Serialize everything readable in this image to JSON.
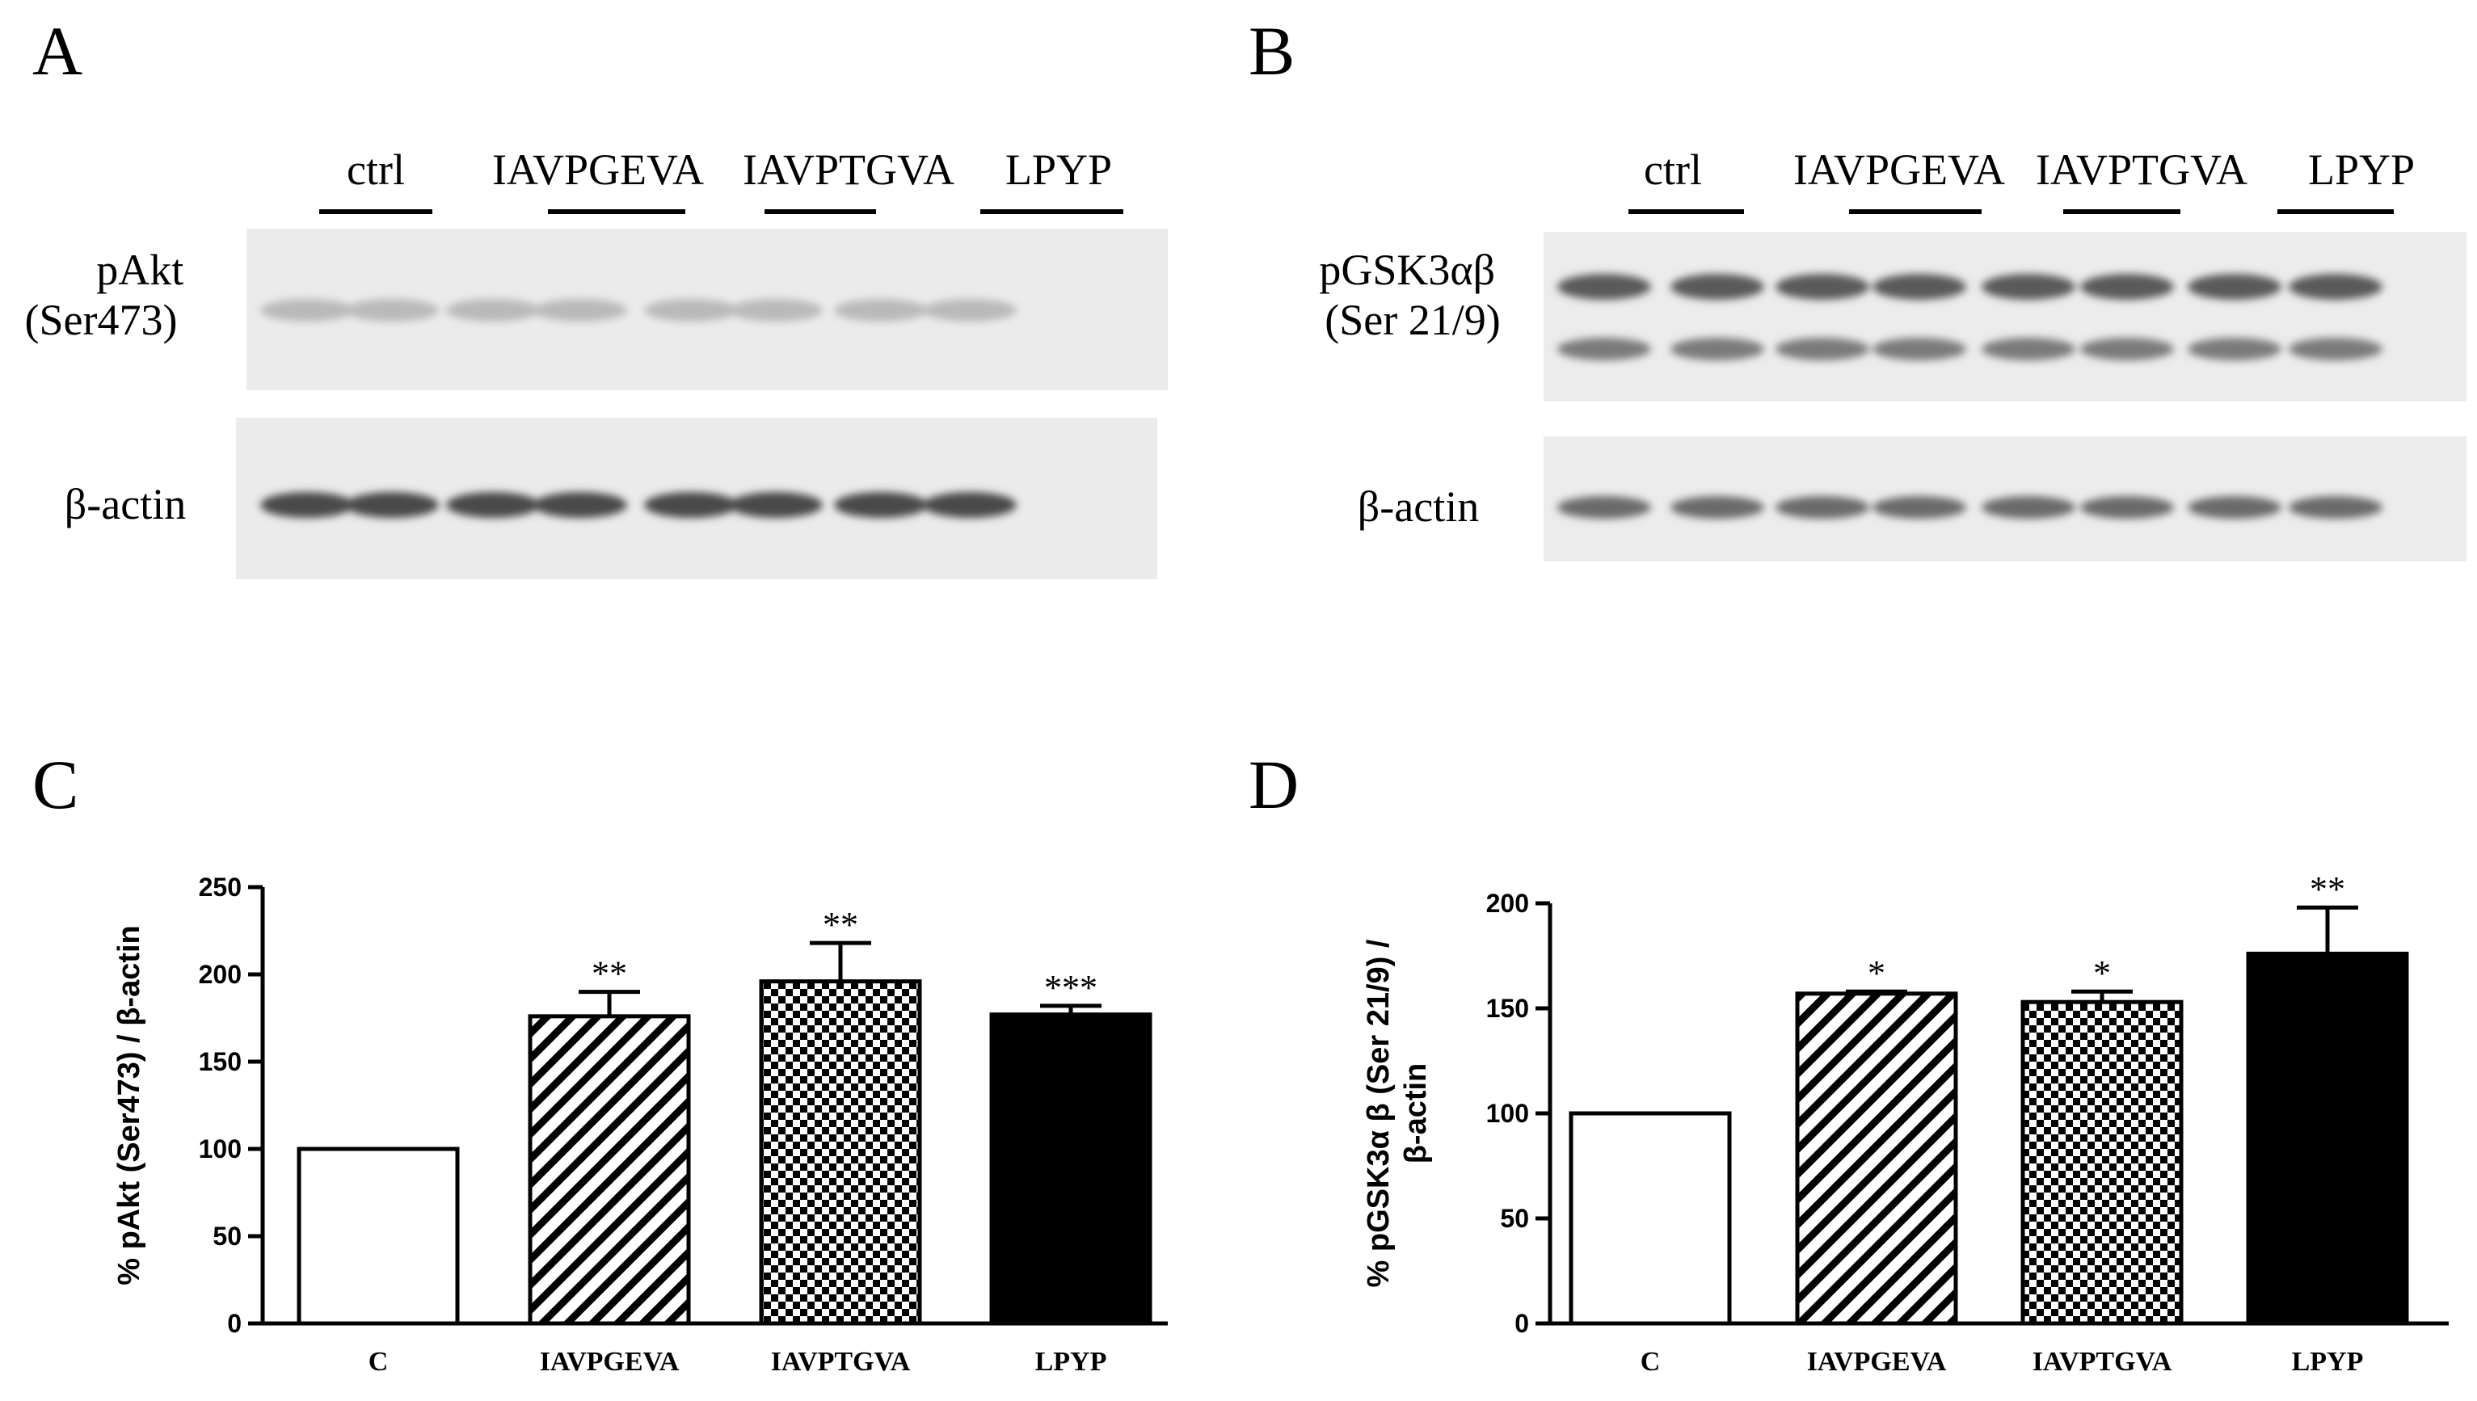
{
  "panels": {
    "A": {
      "letter": "A",
      "groups": [
        "ctrl",
        "IAVPGEVA",
        "IAVPTGVA",
        "LPYP"
      ],
      "rows": [
        "pAkt\n(Ser473)",
        "β-actin"
      ]
    },
    "B": {
      "letter": "B",
      "groups": [
        "ctrl",
        "IAVPGEVA",
        "IAVPTGVA",
        "LPYP"
      ],
      "rows": [
        "pGSK3αβ\n(Ser 21/9)",
        "β-actin"
      ]
    },
    "C": {
      "letter": "C"
    },
    "D": {
      "letter": "D"
    }
  },
  "colors": {
    "bar_outline": "#000000",
    "lpyp_fill": "#000000",
    "control_fill": "#ffffff"
  },
  "chart_data": [
    {
      "panel": "C",
      "type": "bar",
      "categories": [
        "C",
        "IAVPGEVA",
        "IAVPTGVA",
        "LPYP"
      ],
      "values": [
        100,
        176,
        196,
        177
      ],
      "errors": [
        0,
        14,
        22,
        5
      ],
      "significance": [
        "",
        "**",
        "**",
        "***"
      ],
      "fills": [
        "open",
        "diagonal-hatch",
        "checker",
        "solid"
      ],
      "ylabel": "% pAkt (Ser473) / β-actin",
      "ylim": [
        0,
        250
      ],
      "yticks": [
        0,
        50,
        100,
        150,
        200,
        250
      ],
      "grid": false
    },
    {
      "panel": "D",
      "type": "bar",
      "categories": [
        "C",
        "IAVPGEVA",
        "IAVPTGVA",
        "LPYP"
      ],
      "values": [
        100,
        157,
        153,
        176
      ],
      "errors": [
        0,
        1,
        5,
        22
      ],
      "significance": [
        "",
        "*",
        "*",
        "**"
      ],
      "fills": [
        "open",
        "diagonal-hatch",
        "checker",
        "solid"
      ],
      "ylabel": "% pGSK3α β (Ser 21/9) /\nβ-actin",
      "ylim": [
        0,
        200
      ],
      "yticks": [
        0,
        50,
        100,
        150,
        200
      ],
      "grid": false
    }
  ]
}
